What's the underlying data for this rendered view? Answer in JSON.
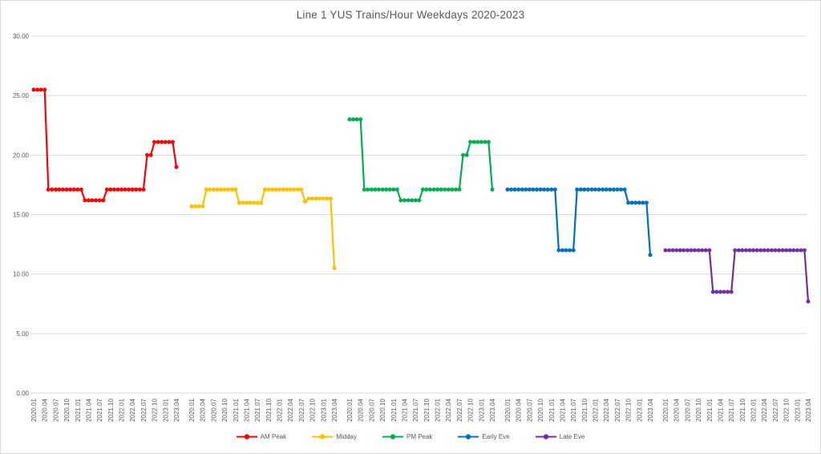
{
  "chart_data": {
    "type": "line",
    "title": "Line 1 YUS Trains/Hour Weekdays 2020-2023",
    "ylabel": "",
    "xlabel": "",
    "ylim": [
      0,
      30
    ],
    "ytick_step": 5,
    "ytick_labels": [
      "0.00",
      "5.00",
      "10.00",
      "15.00",
      "20.00",
      "25.00",
      "30.00"
    ],
    "grid": true,
    "legend_position": "bottom",
    "x_layout": "each series plotted in its own consecutive group; monthly points labeled quarterly",
    "categories": [
      "2020.01",
      "2020.04",
      "2020.07",
      "2020.10",
      "2021.01",
      "2021.04",
      "2021.07",
      "2021.10",
      "2022.01",
      "2022.04",
      "2022.07",
      "2022.10",
      "2023.01",
      "2023.04"
    ],
    "points_per_series": 40,
    "series": [
      {
        "name": "AM Peak",
        "color": "#FF0000",
        "values": [
          25.5,
          25.5,
          25.5,
          25.5,
          17.1,
          17.1,
          17.1,
          17.1,
          17.1,
          17.1,
          17.1,
          17.1,
          17.1,
          17.1,
          16.2,
          16.2,
          16.2,
          16.2,
          16.2,
          16.2,
          17.1,
          17.1,
          17.1,
          17.1,
          17.1,
          17.1,
          17.1,
          17.1,
          17.1,
          17.1,
          17.1,
          20.0,
          20.0,
          21.1,
          21.1,
          21.1,
          21.1,
          21.1,
          21.1,
          19.0
        ]
      },
      {
        "name": "Midday",
        "color": "#FFC000",
        "values": [
          15.7,
          15.7,
          15.7,
          15.7,
          17.1,
          17.1,
          17.1,
          17.1,
          17.1,
          17.1,
          17.1,
          17.1,
          17.1,
          16.0,
          16.0,
          16.0,
          16.0,
          16.0,
          16.0,
          16.0,
          17.1,
          17.1,
          17.1,
          17.1,
          17.1,
          17.1,
          17.1,
          17.1,
          17.1,
          17.1,
          17.1,
          16.1,
          16.35,
          16.35,
          16.35,
          16.35,
          16.35,
          16.35,
          16.35,
          10.5
        ]
      },
      {
        "name": "PM Peak",
        "color": "#00B050",
        "values": [
          23.0,
          23.0,
          23.0,
          23.0,
          17.1,
          17.1,
          17.1,
          17.1,
          17.1,
          17.1,
          17.1,
          17.1,
          17.1,
          17.1,
          16.2,
          16.2,
          16.2,
          16.2,
          16.2,
          16.2,
          17.1,
          17.1,
          17.1,
          17.1,
          17.1,
          17.1,
          17.1,
          17.1,
          17.1,
          17.1,
          17.1,
          20.0,
          20.0,
          21.1,
          21.1,
          21.1,
          21.1,
          21.1,
          21.1,
          17.1
        ]
      },
      {
        "name": "Early Eve",
        "color": "#0070C0",
        "values": [
          17.1,
          17.1,
          17.1,
          17.1,
          17.1,
          17.1,
          17.1,
          17.1,
          17.1,
          17.1,
          17.1,
          17.1,
          17.1,
          17.1,
          12.0,
          12.0,
          12.0,
          12.0,
          12.0,
          17.1,
          17.1,
          17.1,
          17.1,
          17.1,
          17.1,
          17.1,
          17.1,
          17.1,
          17.1,
          17.1,
          17.1,
          17.1,
          17.1,
          16.0,
          16.0,
          16.0,
          16.0,
          16.0,
          16.0,
          11.6
        ]
      },
      {
        "name": "Late Eve",
        "color": "#7030A0",
        "values": [
          12.0,
          12.0,
          12.0,
          12.0,
          12.0,
          12.0,
          12.0,
          12.0,
          12.0,
          12.0,
          12.0,
          12.0,
          12.0,
          8.5,
          8.5,
          8.5,
          8.5,
          8.5,
          8.5,
          12.0,
          12.0,
          12.0,
          12.0,
          12.0,
          12.0,
          12.0,
          12.0,
          12.0,
          12.0,
          12.0,
          12.0,
          12.0,
          12.0,
          12.0,
          12.0,
          12.0,
          12.0,
          12.0,
          12.0,
          7.7
        ]
      }
    ],
    "legend_labels": [
      "AM Peak",
      "Midday",
      "PM Peak",
      "Early Eve",
      "Late Eve"
    ],
    "text_color": "#595959",
    "gridline_color": "#D9D9D9",
    "background_color": "#FFFFFF"
  }
}
